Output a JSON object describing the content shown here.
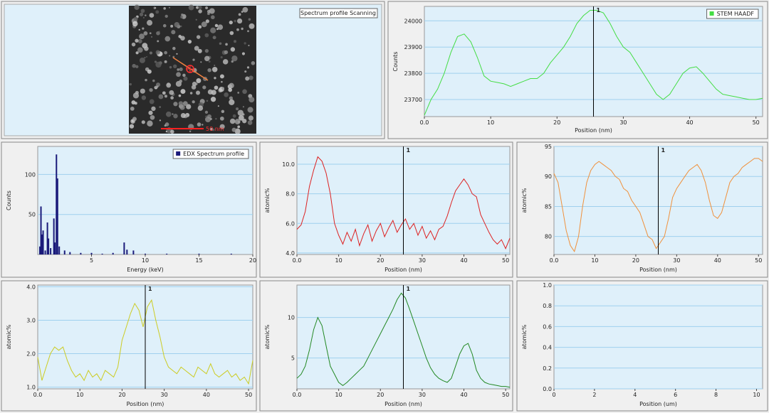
{
  "image_panel": {
    "label": "Spectrum profile Scanning",
    "scale_bar": "50 nm"
  },
  "chart_data": [
    {
      "type": "line",
      "xlabel": "Position (nm)",
      "ylabel": "Counts",
      "grid": true,
      "legend": "top-right",
      "cursor": {
        "value": 25.5,
        "label": "1"
      },
      "x": [
        0,
        1,
        2,
        3,
        4,
        5,
        6,
        7,
        8,
        9,
        10,
        11,
        12,
        13,
        14,
        15,
        16,
        17,
        18,
        19,
        20,
        21,
        22,
        23,
        24,
        25,
        26,
        27,
        28,
        29,
        30,
        31,
        32,
        33,
        34,
        35,
        36,
        37,
        38,
        39,
        40,
        41,
        42,
        43,
        44,
        45,
        46,
        47,
        48,
        49,
        50,
        51
      ],
      "series": [
        {
          "name": "STEM HAADF",
          "color": "#44dd44",
          "values": [
            23640,
            23700,
            23740,
            23800,
            23880,
            23940,
            23950,
            23920,
            23860,
            23790,
            23770,
            23765,
            23760,
            23750,
            23760,
            23770,
            23780,
            23780,
            23800,
            23840,
            23870,
            23900,
            23940,
            23990,
            24020,
            24040,
            24040,
            24030,
            23990,
            23940,
            23900,
            23880,
            23840,
            23800,
            23760,
            23720,
            23700,
            23720,
            23760,
            23800,
            23820,
            23825,
            23800,
            23770,
            23740,
            23720,
            23715,
            23710,
            23705,
            23700,
            23700,
            23705
          ]
        }
      ],
      "xlim": [
        0,
        51
      ],
      "ylim": [
        23635,
        24055
      ],
      "xticks": [
        {
          "value": 0,
          "label": "0.0"
        },
        10,
        20,
        30,
        40,
        50
      ],
      "yticks": [
        23700,
        23800,
        23900,
        24000
      ]
    },
    {
      "type": "spectrum",
      "xlabel": "Energy (keV)",
      "ylabel": "Counts",
      "grid": true,
      "legend": "top-right",
      "x": [
        0.2,
        0.3,
        0.4,
        0.5,
        0.7,
        0.9,
        1.0,
        1.2,
        1.5,
        1.6,
        1.74,
        1.84,
        2.0,
        2.5,
        3,
        4,
        5,
        6,
        7,
        8.04,
        8.3,
        8.9,
        10,
        12,
        15,
        18,
        20
      ],
      "series": [
        {
          "name": "EDX Spectrum profile",
          "color": "#1a1a7a",
          "values": [
            10,
            60,
            25,
            30,
            5,
            40,
            20,
            8,
            45,
            15,
            125,
            95,
            10,
            5,
            3,
            2,
            2,
            1,
            2,
            15,
            6,
            5,
            1,
            1,
            1,
            1,
            0
          ]
        }
      ],
      "xlim": [
        0,
        20
      ],
      "ylim": [
        0,
        135
      ],
      "xticks": [
        5,
        10,
        15,
        20
      ],
      "yticks": [
        50,
        100
      ]
    },
    {
      "type": "line",
      "xlabel": "Position (nm)",
      "ylabel": "atomic%",
      "grid": true,
      "cursor": {
        "value": 25.5,
        "label": "1"
      },
      "x": [
        0,
        1,
        2,
        3,
        4,
        5,
        6,
        7,
        8,
        9,
        10,
        11,
        12,
        13,
        14,
        15,
        16,
        17,
        18,
        19,
        20,
        21,
        22,
        23,
        24,
        25,
        26,
        27,
        28,
        29,
        30,
        31,
        32,
        33,
        34,
        35,
        36,
        37,
        38,
        39,
        40,
        41,
        42,
        43,
        44,
        45,
        46,
        47,
        48,
        49,
        50,
        51
      ],
      "series": [
        {
          "color": "#dd2222",
          "values": [
            5.6,
            5.9,
            6.8,
            8.5,
            9.6,
            10.5,
            10.2,
            9.4,
            8.0,
            6.0,
            5.2,
            4.6,
            5.4,
            4.8,
            5.6,
            4.5,
            5.3,
            5.9,
            4.8,
            5.5,
            6.0,
            5.1,
            5.7,
            6.2,
            5.4,
            5.9,
            6.3,
            5.6,
            6.0,
            5.2,
            5.8,
            5.0,
            5.5,
            4.9,
            5.6,
            5.8,
            6.5,
            7.4,
            8.2,
            8.6,
            9.0,
            8.6,
            8.0,
            7.8,
            6.6,
            6.0,
            5.4,
            4.9,
            4.6,
            4.9,
            4.3,
            5.0
          ]
        }
      ],
      "xlim": [
        0,
        51
      ],
      "ylim": [
        3.9,
        11.2
      ],
      "xticks": [
        {
          "value": 0,
          "label": "0.0"
        },
        10,
        20,
        30,
        40,
        50
      ],
      "yticks": [
        {
          "value": 4,
          "label": "4.0"
        },
        {
          "value": 6,
          "label": "6.0"
        },
        {
          "value": 8,
          "label": "8.0"
        },
        {
          "value": 10,
          "label": "10.0"
        }
      ]
    },
    {
      "type": "line",
      "xlabel": "Position (nm)",
      "ylabel": "atomic%",
      "grid": true,
      "cursor": {
        "value": 25.5,
        "label": "1"
      },
      "x": [
        0,
        1,
        2,
        3,
        4,
        5,
        6,
        7,
        8,
        9,
        10,
        11,
        12,
        13,
        14,
        15,
        16,
        17,
        18,
        19,
        20,
        21,
        22,
        23,
        24,
        25,
        26,
        27,
        28,
        29,
        30,
        31,
        32,
        33,
        34,
        35,
        36,
        37,
        38,
        39,
        40,
        41,
        42,
        43,
        44,
        45,
        46,
        47,
        48,
        49,
        50,
        51
      ],
      "series": [
        {
          "color": "#f0903a",
          "values": [
            90.5,
            89,
            85,
            81,
            78.5,
            77.5,
            80,
            85,
            89,
            91,
            92,
            92.5,
            92,
            91.5,
            91,
            90,
            89.5,
            88,
            87.5,
            86,
            85,
            84,
            82,
            80,
            79.5,
            78,
            79,
            80,
            83,
            86.5,
            88,
            89,
            90,
            91,
            91.5,
            92,
            91,
            89,
            86,
            83.5,
            83,
            84,
            86.5,
            89,
            90,
            90.5,
            91.5,
            92,
            92.5,
            93,
            93,
            92.5
          ]
        }
      ],
      "xlim": [
        0,
        51
      ],
      "ylim": [
        77,
        95
      ],
      "xticks": [
        {
          "value": 0,
          "label": "0.0"
        },
        10,
        20,
        30,
        40,
        50
      ],
      "yticks": [
        80,
        85,
        90,
        95
      ]
    },
    {
      "type": "line",
      "xlabel": "Position (nm)",
      "ylabel": "atomic%",
      "grid": true,
      "cursor": {
        "value": 25.5,
        "label": "1"
      },
      "x": [
        0,
        1,
        2,
        3,
        4,
        5,
        6,
        7,
        8,
        9,
        10,
        11,
        12,
        13,
        14,
        15,
        16,
        17,
        18,
        19,
        20,
        21,
        22,
        23,
        24,
        25,
        26,
        27,
        28,
        29,
        30,
        31,
        32,
        33,
        34,
        35,
        36,
        37,
        38,
        39,
        40,
        41,
        42,
        43,
        44,
        45,
        46,
        47,
        48,
        49,
        50,
        51
      ],
      "series": [
        {
          "color": "#cccc22",
          "values": [
            1.9,
            1.2,
            1.6,
            2.0,
            2.2,
            2.1,
            2.2,
            1.8,
            1.5,
            1.3,
            1.4,
            1.2,
            1.5,
            1.3,
            1.4,
            1.2,
            1.5,
            1.4,
            1.3,
            1.6,
            2.4,
            2.8,
            3.2,
            3.5,
            3.3,
            2.8,
            3.4,
            3.6,
            3.0,
            2.5,
            1.9,
            1.6,
            1.5,
            1.4,
            1.6,
            1.5,
            1.4,
            1.3,
            1.6,
            1.5,
            1.4,
            1.7,
            1.4,
            1.3,
            1.4,
            1.5,
            1.3,
            1.4,
            1.2,
            1.3,
            1.1,
            1.8
          ]
        }
      ],
      "xlim": [
        0,
        51
      ],
      "ylim": [
        0.95,
        4.05
      ],
      "xticks": [
        {
          "value": 0,
          "label": "0.0"
        },
        10,
        20,
        30,
        40,
        50
      ],
      "yticks": [
        {
          "value": 1,
          "label": "1.0"
        },
        {
          "value": 2,
          "label": "2.0"
        },
        {
          "value": 3,
          "label": "3.0"
        },
        {
          "value": 4,
          "label": "4.0"
        }
      ]
    },
    {
      "type": "line",
      "xlabel": "Position (nm)",
      "ylabel": "atomic%",
      "grid": true,
      "cursor": {
        "value": 25.5,
        "label": "1"
      },
      "x": [
        0,
        1,
        2,
        3,
        4,
        5,
        6,
        7,
        8,
        9,
        10,
        11,
        12,
        13,
        14,
        15,
        16,
        17,
        18,
        19,
        20,
        21,
        22,
        23,
        24,
        25,
        26,
        27,
        28,
        29,
        30,
        31,
        32,
        33,
        34,
        35,
        36,
        37,
        38,
        39,
        40,
        41,
        42,
        43,
        44,
        45,
        46,
        47,
        48,
        49,
        50,
        51
      ],
      "series": [
        {
          "color": "#228822",
          "values": [
            2.5,
            3,
            4,
            6,
            8.5,
            10,
            9,
            6.5,
            4,
            3,
            2,
            1.6,
            2,
            2.5,
            3,
            3.5,
            4,
            5,
            6,
            7,
            8,
            9,
            10,
            11,
            12.2,
            13,
            12.4,
            11,
            9.5,
            8,
            6.5,
            5,
            3.8,
            3,
            2.5,
            2.2,
            2,
            2.5,
            4,
            5.5,
            6.5,
            6.8,
            5.5,
            3.5,
            2.5,
            2,
            1.8,
            1.7,
            1.6,
            1.5,
            1.5,
            1.4
          ]
        }
      ],
      "xlim": [
        0,
        51
      ],
      "ylim": [
        1.2,
        14
      ],
      "xticks": [
        {
          "value": 0,
          "label": "0.0"
        },
        10,
        20,
        30,
        40,
        50
      ],
      "yticks": [
        5,
        10
      ]
    },
    {
      "type": "line",
      "xlabel": "Position (um)",
      "ylabel": "atomic%",
      "grid": true,
      "x": [],
      "series": [],
      "xlim": [
        0,
        10.3
      ],
      "ylim": [
        0,
        1
      ],
      "xticks": [
        0,
        2,
        4,
        6,
        8,
        10
      ],
      "yticks": [
        {
          "value": 0,
          "label": "0.0"
        },
        {
          "value": 0.2,
          "label": "0.2"
        },
        {
          "value": 0.4,
          "label": "0.4"
        },
        {
          "value": 0.6,
          "label": "0.6"
        },
        {
          "value": 0.8,
          "label": "0.8"
        },
        {
          "value": 1,
          "label": "1.0"
        }
      ]
    }
  ]
}
